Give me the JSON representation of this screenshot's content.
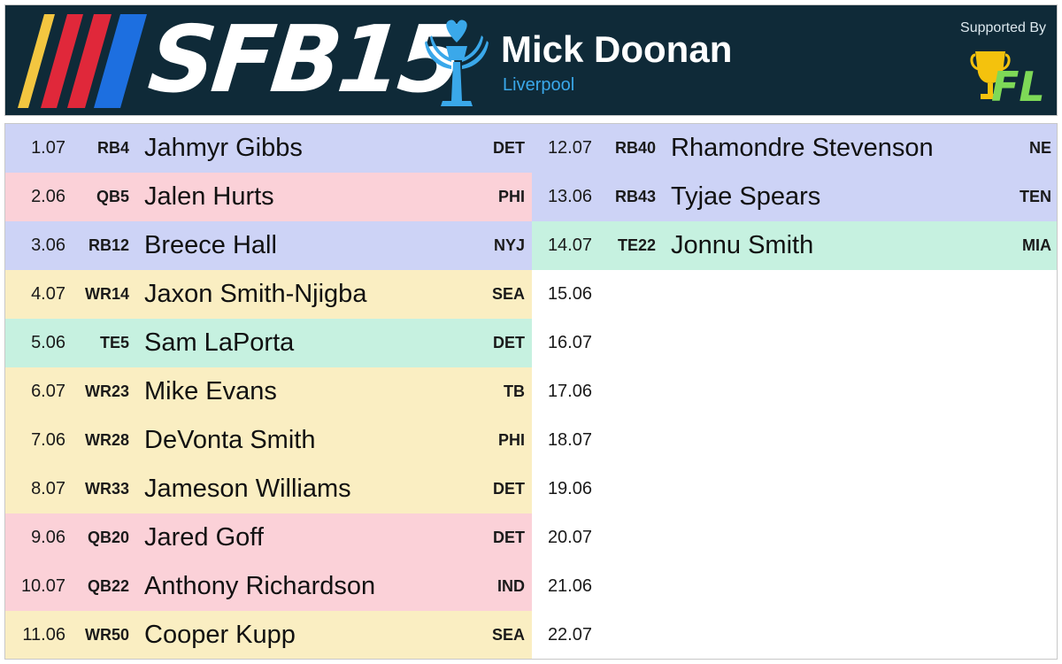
{
  "header": {
    "logo_text": "SFB15",
    "manager_name": "Mick Doonan",
    "manager_team": "Liverpool",
    "sponsor_label": "Supported By",
    "sponsor_logo_text": "FL",
    "icons": [
      "racing-stripes-icon",
      "trophy-hands-icon",
      "fl-trophy-logo-icon"
    ]
  },
  "colors": {
    "header_bg": "#0f2a38",
    "RB": "#cdd3f6",
    "QB": "#fbd1d8",
    "WR": "#faeec2",
    "TE": "#c6f1e0",
    "accent_blue": "#3aa8ea",
    "stripe_yellow": "#f3c640",
    "stripe_red": "#e0283a",
    "stripe_blue": "#1d6fe0",
    "sponsor_yellow": "#f4c20d",
    "sponsor_green": "#7ed957"
  },
  "left_column": [
    {
      "pick": "1.07",
      "pos": "RB4",
      "player": "Jahmyr Gibbs",
      "team": "DET",
      "type": "rb"
    },
    {
      "pick": "2.06",
      "pos": "QB5",
      "player": "Jalen Hurts",
      "team": "PHI",
      "type": "qb"
    },
    {
      "pick": "3.06",
      "pos": "RB12",
      "player": "Breece Hall",
      "team": "NYJ",
      "type": "rb"
    },
    {
      "pick": "4.07",
      "pos": "WR14",
      "player": "Jaxon Smith-Njigba",
      "team": "SEA",
      "type": "wr"
    },
    {
      "pick": "5.06",
      "pos": "TE5",
      "player": "Sam LaPorta",
      "team": "DET",
      "type": "te"
    },
    {
      "pick": "6.07",
      "pos": "WR23",
      "player": "Mike Evans",
      "team": "TB",
      "type": "wr"
    },
    {
      "pick": "7.06",
      "pos": "WR28",
      "player": "DeVonta Smith",
      "team": "PHI",
      "type": "wr"
    },
    {
      "pick": "8.07",
      "pos": "WR33",
      "player": "Jameson Williams",
      "team": "DET",
      "type": "wr"
    },
    {
      "pick": "9.06",
      "pos": "QB20",
      "player": "Jared Goff",
      "team": "DET",
      "type": "qb"
    },
    {
      "pick": "10.07",
      "pos": "QB22",
      "player": "Anthony Richardson",
      "team": "IND",
      "type": "qb"
    },
    {
      "pick": "11.06",
      "pos": "WR50",
      "player": "Cooper Kupp",
      "team": "SEA",
      "type": "wr"
    }
  ],
  "right_column": [
    {
      "pick": "12.07",
      "pos": "RB40",
      "player": "Rhamondre Stevenson",
      "team": "NE",
      "type": "rb"
    },
    {
      "pick": "13.06",
      "pos": "RB43",
      "player": "Tyjae Spears",
      "team": "TEN",
      "type": "rb"
    },
    {
      "pick": "14.07",
      "pos": "TE22",
      "player": "Jonnu Smith",
      "team": "MIA",
      "type": "te"
    },
    {
      "pick": "15.06",
      "pos": "",
      "player": "",
      "team": "",
      "type": "empty"
    },
    {
      "pick": "16.07",
      "pos": "",
      "player": "",
      "team": "",
      "type": "empty"
    },
    {
      "pick": "17.06",
      "pos": "",
      "player": "",
      "team": "",
      "type": "empty"
    },
    {
      "pick": "18.07",
      "pos": "",
      "player": "",
      "team": "",
      "type": "empty"
    },
    {
      "pick": "19.06",
      "pos": "",
      "player": "",
      "team": "",
      "type": "empty"
    },
    {
      "pick": "20.07",
      "pos": "",
      "player": "",
      "team": "",
      "type": "empty"
    },
    {
      "pick": "21.06",
      "pos": "",
      "player": "",
      "team": "",
      "type": "empty"
    },
    {
      "pick": "22.07",
      "pos": "",
      "player": "",
      "team": "",
      "type": "empty"
    }
  ]
}
